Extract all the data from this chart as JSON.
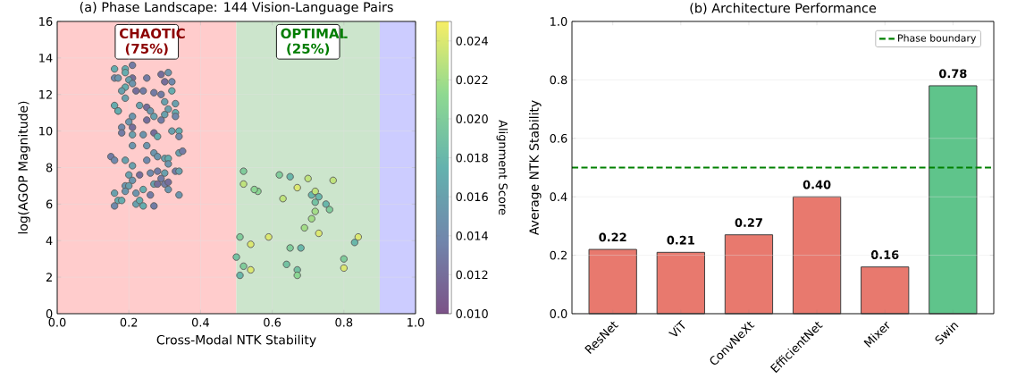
{
  "chart_data": [
    {
      "type": "scatter",
      "title": "(a) Phase Landscape: 144 Vision-Language Pairs",
      "xlabel": "Cross-Modal NTK Stability",
      "ylabel": "log(AGOP Magnitude)",
      "clabel": "Alignment Score",
      "x": [
        0.21,
        0.16,
        0.19,
        0.19,
        0.31,
        0.29,
        0.16,
        0.17,
        0.21,
        0.25,
        0.2,
        0.3,
        0.32,
        0.21,
        0.19,
        0.22,
        0.24,
        0.18,
        0.27,
        0.32,
        0.29,
        0.19,
        0.23,
        0.3,
        0.33,
        0.16,
        0.17,
        0.25,
        0.26,
        0.31,
        0.17,
        0.33,
        0.21,
        0.27,
        0.3,
        0.33,
        0.25,
        0.29,
        0.2,
        0.18,
        0.21,
        0.18,
        0.21,
        0.24,
        0.27,
        0.28,
        0.32,
        0.34,
        0.34,
        0.21,
        0.25,
        0.34,
        0.35,
        0.15,
        0.16,
        0.19,
        0.21,
        0.25,
        0.27,
        0.28,
        0.3,
        0.31,
        0.31,
        0.2,
        0.23,
        0.26,
        0.28,
        0.3,
        0.33,
        0.34,
        0.21,
        0.29,
        0.27,
        0.28,
        0.3,
        0.31,
        0.19,
        0.2,
        0.16,
        0.19,
        0.22,
        0.24,
        0.26,
        0.31,
        0.34,
        0.17,
        0.18,
        0.16,
        0.22,
        0.23,
        0.24,
        0.27,
        0.52,
        0.52,
        0.56,
        0.55,
        0.62,
        0.65,
        0.7,
        0.67,
        0.77,
        0.63,
        0.71,
        0.72,
        0.73,
        0.72,
        0.75,
        0.76,
        0.72,
        0.71,
        0.69,
        0.73,
        0.59,
        0.51,
        0.54,
        0.65,
        0.68,
        0.84,
        0.83,
        0.5,
        0.8,
        0.52,
        0.54,
        0.64,
        0.67,
        0.67,
        0.8,
        0.51
      ],
      "values": [
        13.6,
        13.4,
        13.4,
        13.2,
        13.2,
        13.1,
        12.9,
        12.9,
        12.9,
        12.9,
        12.8,
        12.7,
        12.7,
        12.6,
        12.4,
        12.2,
        12.2,
        12.2,
        12.1,
        12.2,
        12.0,
        11.8,
        11.4,
        11.6,
        11.5,
        11.4,
        11.1,
        11.3,
        11.1,
        11.2,
        11.1,
        11.0,
        10.8,
        10.8,
        10.9,
        10.8,
        10.6,
        10.6,
        10.5,
        10.2,
        10.2,
        9.9,
        9.8,
        9.8,
        9.9,
        9.7,
        10.0,
        10.0,
        9.7,
        9.2,
        9.2,
        8.8,
        8.9,
        8.6,
        8.4,
        8.4,
        8.1,
        8.4,
        8.8,
        8.6,
        8.5,
        8.5,
        8.2,
        7.6,
        7.6,
        7.7,
        7.8,
        7.7,
        7.8,
        7.8,
        7.3,
        7.4,
        7.1,
        7.1,
        7.1,
        7.2,
        7.0,
        7.0,
        6.6,
        6.7,
        6.6,
        6.8,
        6.5,
        6.8,
        6.5,
        6.2,
        6.2,
        5.9,
        6.0,
        6.2,
        5.9,
        5.9,
        7.8,
        7.1,
        6.7,
        6.8,
        7.6,
        7.5,
        7.4,
        6.9,
        7.3,
        6.3,
        6.5,
        6.7,
        6.4,
        6.1,
        6.0,
        5.7,
        5.6,
        5.2,
        4.7,
        4.4,
        4.2,
        4.2,
        3.8,
        3.6,
        3.6,
        4.2,
        3.9,
        3.1,
        3.0,
        2.6,
        2.4,
        2.7,
        2.4,
        2.1,
        2.5,
        2.1
      ],
      "cvalues": [
        0.013,
        0.017,
        0.017,
        0.017,
        0.015,
        0.012,
        0.014,
        0.015,
        0.012,
        0.013,
        0.016,
        0.012,
        0.014,
        0.015,
        0.017,
        0.012,
        0.013,
        0.016,
        0.013,
        0.017,
        0.013,
        0.016,
        0.016,
        0.016,
        0.016,
        0.017,
        0.014,
        0.012,
        0.015,
        0.016,
        0.017,
        0.017,
        0.015,
        0.016,
        0.016,
        0.014,
        0.012,
        0.013,
        0.015,
        0.014,
        0.012,
        0.013,
        0.016,
        0.015,
        0.012,
        0.017,
        0.016,
        0.017,
        0.014,
        0.015,
        0.015,
        0.016,
        0.013,
        0.013,
        0.014,
        0.016,
        0.016,
        0.014,
        0.015,
        0.015,
        0.016,
        0.017,
        0.015,
        0.016,
        0.012,
        0.014,
        0.013,
        0.016,
        0.013,
        0.016,
        0.015,
        0.013,
        0.016,
        0.012,
        0.013,
        0.012,
        0.015,
        0.016,
        0.016,
        0.015,
        0.015,
        0.017,
        0.013,
        0.015,
        0.015,
        0.017,
        0.017,
        0.014,
        0.016,
        0.017,
        0.017,
        0.013,
        0.02,
        0.023,
        0.021,
        0.021,
        0.02,
        0.018,
        0.023,
        0.024,
        0.023,
        0.023,
        0.018,
        0.023,
        0.018,
        0.019,
        0.018,
        0.02,
        0.022,
        0.022,
        0.022,
        0.024,
        0.024,
        0.02,
        0.024,
        0.02,
        0.018,
        0.024,
        0.018,
        0.019,
        0.02,
        0.02,
        0.024,
        0.019,
        0.019,
        0.021,
        0.024,
        0.018
      ],
      "xlim": [
        0,
        1
      ],
      "ylim": [
        0,
        16
      ],
      "xticks": [
        {
          "value": 0,
          "label": "0.0"
        },
        {
          "value": 0.2,
          "label": "0.2"
        },
        {
          "value": 0.4,
          "label": "0.4"
        },
        {
          "value": 0.6,
          "label": "0.6"
        },
        {
          "value": 0.8,
          "label": "0.8"
        },
        {
          "value": 1,
          "label": "1.0"
        }
      ],
      "yticks": [
        0,
        2,
        4,
        6,
        8,
        10,
        12,
        14,
        16
      ],
      "clim": [
        0.01,
        0.025
      ],
      "cticks": [
        {
          "value": 0.01,
          "label": "0.010"
        },
        {
          "value": 0.012,
          "label": "0.012"
        },
        {
          "value": 0.014,
          "label": "0.014"
        },
        {
          "value": 0.016,
          "label": "0.016"
        },
        {
          "value": 0.018,
          "label": "0.018"
        },
        {
          "value": 0.02,
          "label": "0.020"
        },
        {
          "value": 0.022,
          "label": "0.022"
        },
        {
          "value": 0.024,
          "label": "0.024"
        }
      ],
      "bands": [
        {
          "axis": "x",
          "from": 0,
          "to": 0.5,
          "label": "CHAOTIC (75%)",
          "color": "#ffcccc"
        },
        {
          "axis": "x",
          "from": 0.5,
          "to": 0.9,
          "label": "OPTIMAL (25%)",
          "color": "#cce5cc"
        },
        {
          "axis": "x",
          "from": 0.9,
          "to": 1,
          "color": "#ccccff"
        }
      ],
      "grid": true,
      "marker": "circle"
    },
    {
      "type": "bar",
      "title": "(b) Architecture Performance",
      "ylabel": "Average NTK Stability",
      "categories": [
        "ResNet",
        "ViT",
        "ConvNeXt",
        "EfficientNet",
        "Mixer",
        "Swin"
      ],
      "values": [
        0.22,
        0.21,
        0.27,
        0.4,
        0.16,
        0.78
      ],
      "colors": [
        "#e8796e",
        "#e8796e",
        "#e8796e",
        "#e8796e",
        "#e8796e",
        "#5fc48b"
      ],
      "value_labels": [
        "0.22",
        "0.21",
        "0.27",
        "0.40",
        "0.16",
        "0.78"
      ],
      "ylim": [
        0,
        1
      ],
      "yticks": [
        {
          "value": 0,
          "label": "0.0"
        },
        {
          "value": 0.2,
          "label": "0.2"
        },
        {
          "value": 0.4,
          "label": "0.4"
        },
        {
          "value": 0.6,
          "label": "0.6"
        },
        {
          "value": 0.8,
          "label": "0.8"
        },
        {
          "value": 1,
          "label": "1.0"
        }
      ],
      "ref_lines": [
        {
          "axis": "y",
          "value": 0.5,
          "label": "Phase boundary",
          "color": "#008000",
          "line_style": "dashed"
        }
      ],
      "grid": "y",
      "legend": "top right"
    }
  ]
}
